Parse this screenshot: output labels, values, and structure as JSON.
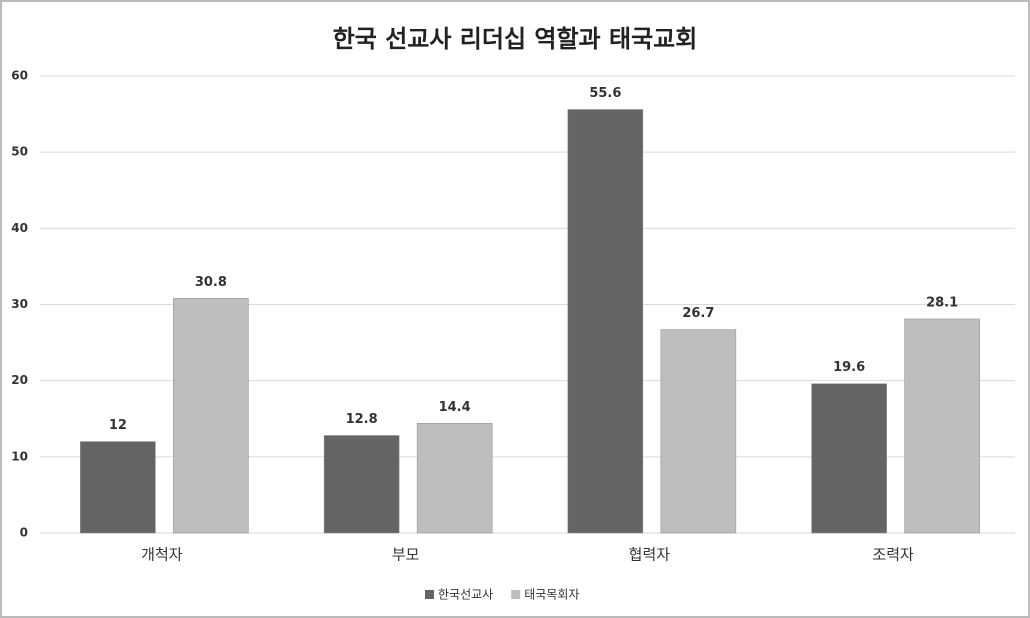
{
  "chart_data": {
    "type": "bar",
    "title": "한국 선교사 리더십 역할과 태국교회",
    "categories": [
      "개척자",
      "부모",
      "협력자",
      "조력자"
    ],
    "series": [
      {
        "name": "한국선교사",
        "color": "#646464",
        "values": [
          12,
          12.8,
          55.6,
          19.6
        ]
      },
      {
        "name": "태국목회자",
        "color": "#bebebe",
        "values": [
          30.8,
          14.4,
          26.7,
          28.1
        ]
      }
    ],
    "ylim": [
      0,
      60
    ],
    "yticks": [
      0,
      10,
      20,
      30,
      40,
      50,
      60
    ],
    "grid": true,
    "legend": "bottom"
  }
}
